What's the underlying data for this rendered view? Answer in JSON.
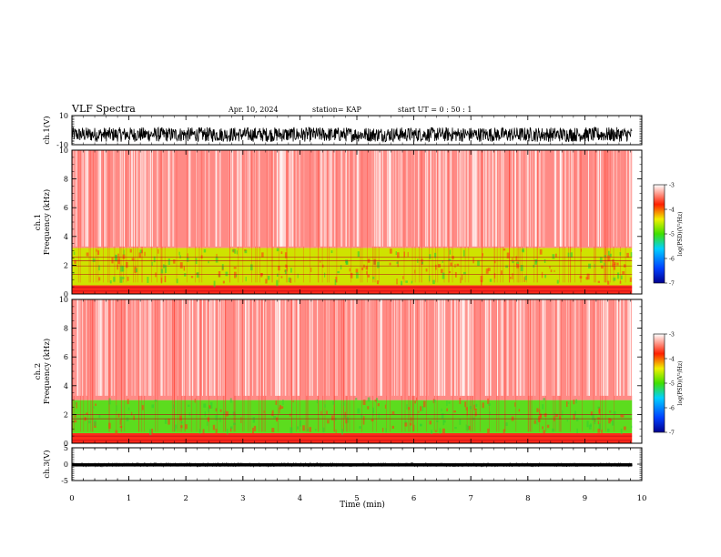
{
  "header": {
    "title": "VLF Spectra",
    "date": "Apr. 10, 2024",
    "station": "station= KAP",
    "start": "start  UT  =   0  : 50 : 1"
  },
  "chart_data": [
    {
      "id": "ch1-waveform",
      "type": "line",
      "ylabel": "ch.1(V)",
      "ylim": [
        -10,
        10
      ],
      "yticks": [
        "10",
        "-10"
      ],
      "xlim": [
        0,
        10
      ],
      "data_extent_min": 9.83,
      "color": "#000000",
      "band": [
        -8,
        2
      ]
    },
    {
      "id": "ch1-spectrogram",
      "type": "heatmap",
      "ylabel": "ch.1\nFrequency (kHz)",
      "ylim": [
        0,
        10
      ],
      "yticks": [
        "0",
        "2",
        "4",
        "6",
        "8",
        "10"
      ],
      "xlim": [
        0,
        10
      ],
      "data_extent_min": 9.83,
      "bands": [
        {
          "f_lo": 0.0,
          "f_hi": 0.6,
          "color": "#ff2a1a"
        },
        {
          "f_lo": 0.6,
          "f_hi": 3.2,
          "color": "#cfe300"
        },
        {
          "f_lo": 3.2,
          "f_hi": 10.0,
          "color": "#ff8a85"
        }
      ],
      "lines_khz": [
        0.2,
        0.45,
        1.35,
        1.95,
        2.3,
        2.55
      ],
      "colorbar": {
        "label": "log(PSD)(V²/Hz)",
        "ticks": [
          "-3",
          "-4",
          "-5",
          "-6",
          "-7"
        ],
        "range": [
          -7,
          -3
        ]
      }
    },
    {
      "id": "ch2-spectrogram",
      "type": "heatmap",
      "ylabel": "ch.2\nFrequency (kHz)",
      "ylim": [
        0,
        10
      ],
      "yticks": [
        "0",
        "2",
        "4",
        "6",
        "8",
        "10"
      ],
      "xlim": [
        0,
        10
      ],
      "data_extent_min": 9.83,
      "bands": [
        {
          "f_lo": 0.0,
          "f_hi": 0.7,
          "color": "#ff2a1a"
        },
        {
          "f_lo": 0.7,
          "f_hi": 3.0,
          "color": "#5cdc1e"
        },
        {
          "f_lo": 3.0,
          "f_hi": 10.0,
          "color": "#ff8a85"
        }
      ],
      "lines_khz": [
        0.2,
        0.5,
        1.7,
        2.0
      ],
      "colorbar": {
        "label": "log(PSD)(V²/Hz)",
        "ticks": [
          "-3",
          "-4",
          "-5",
          "-6",
          "-7"
        ],
        "range": [
          -7,
          -3
        ]
      }
    },
    {
      "id": "ch3-waveform",
      "type": "line",
      "ylabel": "ch.3(V)",
      "ylim": [
        -5,
        5
      ],
      "yticks": [
        "5",
        "0",
        "-5"
      ],
      "xlim": [
        0,
        10
      ],
      "data_extent_min": 9.83,
      "color": "#000000",
      "band": [
        -0.7,
        0.3
      ]
    }
  ],
  "x_axis": {
    "label": "Time (min)",
    "ticks": [
      "0",
      "1",
      "2",
      "3",
      "4",
      "5",
      "6",
      "7",
      "8",
      "9",
      "10"
    ]
  }
}
